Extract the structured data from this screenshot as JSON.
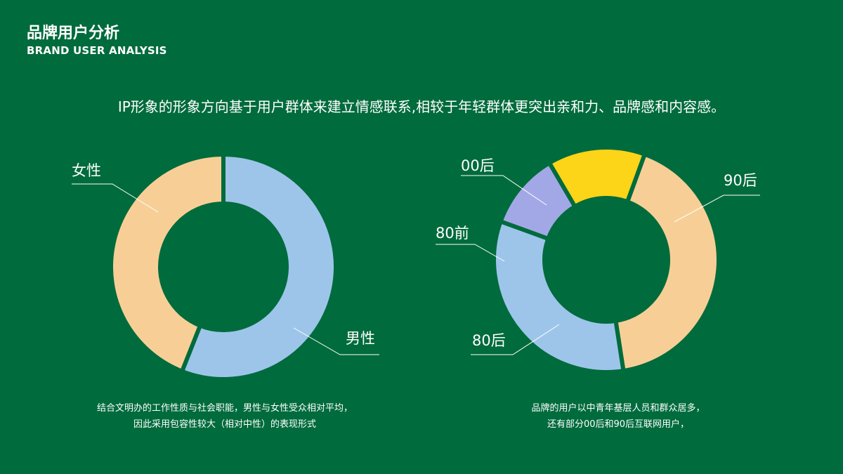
{
  "header": {
    "title": "品牌用户分析",
    "subtitle": "BRAND USER ANALYSIS"
  },
  "intro": "IP形象的形象方向基于用户群体来建立情感联系,相较于年轻群体更突出亲和力、品牌感和内容感。",
  "captions": {
    "left": [
      "结合文明办的工作性质与社会职能，男性与女性受众相对平均，",
      "因此采用包容性较大（相对中性）的表现形式"
    ],
    "right": [
      "品牌的用户以中青年基层人员和群众居多，",
      "还有部分00后和90后互联网用户，"
    ]
  },
  "colors": {
    "background": "#006b3c",
    "peach": "#f7cf96",
    "light_blue": "#9dc5ea",
    "yellow": "#fcd418",
    "lavender": "#a2a8e6"
  },
  "chart_data": [
    {
      "type": "pie",
      "categories": [
        "男性",
        "女性"
      ],
      "values": [
        56,
        44
      ],
      "colors": [
        "#9dc5ea",
        "#f7cf96"
      ],
      "donut": true
    },
    {
      "type": "pie",
      "categories": [
        "90后",
        "80后",
        "80前",
        "00后"
      ],
      "values": [
        42,
        33,
        11,
        14
      ],
      "colors": [
        "#f7cf96",
        "#9dc5ea",
        "#a2a8e6",
        "#fcd418"
      ],
      "donut": true
    }
  ]
}
